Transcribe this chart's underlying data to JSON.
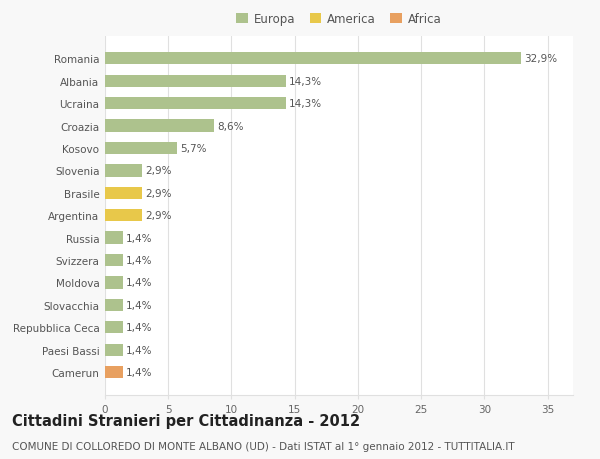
{
  "categories": [
    "Romania",
    "Albania",
    "Ucraina",
    "Croazia",
    "Kosovo",
    "Slovenia",
    "Brasile",
    "Argentina",
    "Russia",
    "Svizzera",
    "Moldova",
    "Slovacchia",
    "Repubblica Ceca",
    "Paesi Bassi",
    "Camerun"
  ],
  "values": [
    32.9,
    14.3,
    14.3,
    8.6,
    5.7,
    2.9,
    2.9,
    2.9,
    1.4,
    1.4,
    1.4,
    1.4,
    1.4,
    1.4,
    1.4
  ],
  "labels": [
    "32,9%",
    "14,3%",
    "14,3%",
    "8,6%",
    "5,7%",
    "2,9%",
    "2,9%",
    "2,9%",
    "1,4%",
    "1,4%",
    "1,4%",
    "1,4%",
    "1,4%",
    "1,4%",
    "1,4%"
  ],
  "continent": [
    "Europa",
    "Europa",
    "Europa",
    "Europa",
    "Europa",
    "Europa",
    "America",
    "America",
    "Europa",
    "Europa",
    "Europa",
    "Europa",
    "Europa",
    "Europa",
    "Africa"
  ],
  "colors": {
    "Europa": "#adc28d",
    "America": "#e8c84a",
    "Africa": "#e8a060"
  },
  "xlim": [
    0,
    37
  ],
  "xticks": [
    0,
    5,
    10,
    15,
    20,
    25,
    30,
    35
  ],
  "title": "Cittadini Stranieri per Cittadinanza - 2012",
  "subtitle": "COMUNE DI COLLOREDO DI MONTE ALBANO (UD) - Dati ISTAT al 1° gennaio 2012 - TUTTITALIA.IT",
  "background_color": "#f8f8f8",
  "plot_bg_color": "#ffffff",
  "grid_color": "#e0e0e0",
  "bar_height": 0.55,
  "title_fontsize": 10.5,
  "subtitle_fontsize": 7.5,
  "label_fontsize": 7.5,
  "tick_fontsize": 7.5,
  "legend_fontsize": 8.5
}
